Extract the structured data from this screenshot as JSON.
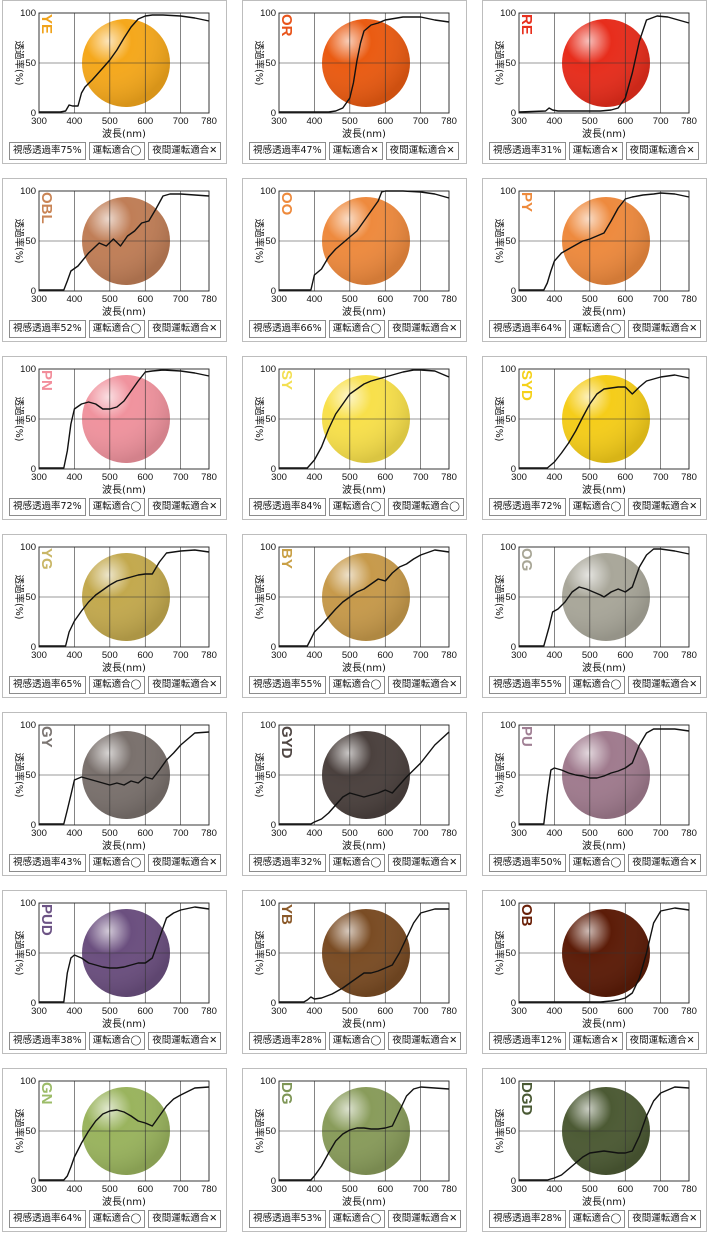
{
  "axis": {
    "xlabel": "波長(nm)",
    "ylabel": "透過率(%)",
    "x_ticks": [
      "300",
      "400",
      "500",
      "600",
      "700",
      "780"
    ],
    "y_ticks": [
      "0",
      "50",
      "100"
    ]
  },
  "chart_data": [
    {
      "type": "line",
      "code": "YE",
      "code_color": "#f0a31c",
      "lens_color": "#f5a81c",
      "xlim": [
        300,
        780
      ],
      "ylim": [
        0,
        100
      ],
      "x": [
        300,
        360,
        375,
        385,
        395,
        410,
        420,
        430,
        450,
        480,
        500,
        520,
        540,
        560,
        580,
        600,
        620,
        650,
        700,
        740,
        780
      ],
      "y": [
        1,
        1,
        2,
        8,
        7,
        7,
        20,
        26,
        33,
        45,
        53,
        63,
        75,
        86,
        94,
        97,
        98,
        98,
        97,
        95,
        92
      ],
      "info": [
        "視感透過率75%",
        "運転適合◯",
        "夜間運転適合✕"
      ]
    },
    {
      "type": "line",
      "code": "OR",
      "code_color": "#e8541b",
      "lens_color": "#ea5b12",
      "xlim": [
        300,
        780
      ],
      "ylim": [
        0,
        100
      ],
      "x": [
        300,
        400,
        440,
        460,
        480,
        500,
        510,
        520,
        530,
        540,
        560,
        580,
        600,
        650,
        700,
        740,
        780
      ],
      "y": [
        1,
        1,
        1,
        2,
        5,
        15,
        30,
        52,
        70,
        82,
        88,
        90,
        93,
        96,
        96,
        93,
        91
      ],
      "info": [
        "視感透過率47%",
        "運転適合✕",
        "夜間運転適合✕"
      ]
    },
    {
      "type": "line",
      "code": "RE",
      "code_color": "#e8301e",
      "lens_color": "#e72d1c",
      "xlim": [
        300,
        780
      ],
      "ylim": [
        0,
        100
      ],
      "x": [
        300,
        375,
        385,
        395,
        410,
        450,
        500,
        530,
        560,
        580,
        600,
        620,
        640,
        660,
        690,
        720,
        750,
        780
      ],
      "y": [
        1,
        2,
        5,
        3,
        2,
        2,
        2,
        2,
        3,
        5,
        15,
        40,
        72,
        93,
        97,
        96,
        93,
        90
      ],
      "info": [
        "視感透過率31%",
        "運転適合✕",
        "夜間運転適合✕"
      ]
    },
    {
      "type": "line",
      "code": "OBL",
      "code_color": "#c98455",
      "lens_color": "#c07e57",
      "xlim": [
        300,
        780
      ],
      "ylim": [
        0,
        100
      ],
      "x": [
        300,
        370,
        380,
        390,
        410,
        440,
        470,
        490,
        510,
        530,
        550,
        570,
        590,
        610,
        630,
        650,
        670,
        700,
        740,
        780
      ],
      "y": [
        1,
        1,
        10,
        20,
        25,
        38,
        48,
        45,
        52,
        45,
        55,
        60,
        68,
        70,
        82,
        95,
        97,
        97,
        96,
        95
      ],
      "info": [
        "視感透過率52%",
        "運転適合◯",
        "夜間運転適合✕"
      ]
    },
    {
      "type": "line",
      "code": "OO",
      "code_color": "#ee8a3c",
      "lens_color": "#ee8a3e",
      "xlim": [
        300,
        780
      ],
      "ylim": [
        0,
        100
      ],
      "x": [
        300,
        390,
        400,
        420,
        440,
        460,
        480,
        500,
        520,
        540,
        560,
        580,
        590,
        600,
        620,
        650,
        700,
        740,
        780
      ],
      "y": [
        1,
        1,
        16,
        22,
        34,
        42,
        48,
        54,
        60,
        70,
        80,
        90,
        99,
        100,
        100,
        100,
        99,
        97,
        93
      ],
      "info": [
        "視感透過率66%",
        "運転適合◯",
        "夜間運転適合✕"
      ]
    },
    {
      "type": "line",
      "code": "PY",
      "code_color": "#ee8a3c",
      "lens_color": "#ee8a3e",
      "xlim": [
        300,
        780
      ],
      "ylim": [
        0,
        100
      ],
      "x": [
        300,
        370,
        380,
        390,
        400,
        420,
        450,
        480,
        500,
        520,
        540,
        560,
        580,
        600,
        620,
        650,
        680,
        700,
        740,
        780
      ],
      "y": [
        1,
        1,
        8,
        20,
        30,
        38,
        44,
        50,
        52,
        55,
        58,
        70,
        83,
        92,
        94,
        96,
        97,
        98,
        97,
        94
      ],
      "info": [
        "視感透過率64%",
        "運転適合◯",
        "夜間運転適合✕"
      ]
    },
    {
      "type": "line",
      "code": "PN",
      "code_color": "#f28e9b",
      "lens_color": "#f0939e",
      "xlim": [
        300,
        780
      ],
      "ylim": [
        0,
        100
      ],
      "x": [
        300,
        370,
        380,
        390,
        400,
        420,
        440,
        460,
        480,
        500,
        520,
        540,
        560,
        580,
        600,
        620,
        650,
        700,
        740,
        780
      ],
      "y": [
        1,
        1,
        18,
        45,
        60,
        65,
        67,
        65,
        60,
        60,
        62,
        68,
        78,
        88,
        97,
        98,
        99,
        98,
        96,
        93
      ],
      "info": [
        "視感透過率72%",
        "運転適合◯",
        "夜間運転適合✕"
      ]
    },
    {
      "type": "line",
      "code": "SY",
      "code_color": "#f3df52",
      "lens_color": "#f8e04b",
      "xlim": [
        300,
        780
      ],
      "ylim": [
        0,
        100
      ],
      "x": [
        300,
        380,
        400,
        420,
        440,
        460,
        480,
        500,
        520,
        540,
        560,
        580,
        600,
        620,
        650,
        680,
        700,
        740,
        780
      ],
      "y": [
        1,
        1,
        9,
        22,
        40,
        55,
        65,
        75,
        80,
        85,
        88,
        90,
        92,
        94,
        97,
        99,
        99,
        98,
        92
      ],
      "info": [
        "視感透過率84%",
        "運転適合◯",
        "夜間運転適合◯"
      ]
    },
    {
      "type": "line",
      "code": "SYD",
      "code_color": "#f5d11a",
      "lens_color": "#f5cd1a",
      "xlim": [
        300,
        780
      ],
      "ylim": [
        0,
        100
      ],
      "x": [
        300,
        380,
        400,
        420,
        440,
        460,
        480,
        500,
        520,
        540,
        560,
        580,
        600,
        620,
        640,
        660,
        680,
        700,
        740,
        780
      ],
      "y": [
        1,
        1,
        7,
        16,
        26,
        38,
        52,
        65,
        75,
        80,
        81,
        82,
        82,
        75,
        82,
        88,
        90,
        92,
        94,
        91
      ],
      "info": [
        "視感透過率72%",
        "運転適合◯",
        "夜間運転適合✕"
      ]
    },
    {
      "type": "line",
      "code": "YG",
      "code_color": "#c9b666",
      "lens_color": "#c3a94e",
      "xlim": [
        300,
        780
      ],
      "ylim": [
        0,
        100
      ],
      "x": [
        300,
        375,
        385,
        400,
        420,
        440,
        460,
        480,
        500,
        520,
        540,
        560,
        580,
        600,
        620,
        640,
        660,
        700,
        740,
        780
      ],
      "y": [
        1,
        1,
        15,
        26,
        36,
        45,
        52,
        57,
        62,
        66,
        68,
        70,
        72,
        73,
        73,
        85,
        94,
        96,
        97,
        95
      ],
      "info": [
        "視感透過率65%",
        "運転適合◯",
        "夜間運転適合✕"
      ]
    },
    {
      "type": "line",
      "code": "BY",
      "code_color": "#c9a046",
      "lens_color": "#c79a4b",
      "xlim": [
        300,
        780
      ],
      "ylim": [
        0,
        100
      ],
      "x": [
        300,
        380,
        390,
        400,
        420,
        440,
        460,
        480,
        500,
        520,
        540,
        560,
        580,
        600,
        620,
        640,
        660,
        680,
        700,
        740,
        780
      ],
      "y": [
        1,
        1,
        8,
        15,
        22,
        30,
        38,
        45,
        50,
        55,
        58,
        63,
        68,
        66,
        74,
        80,
        83,
        88,
        92,
        97,
        95
      ],
      "info": [
        "視感透過率55%",
        "運転適合◯",
        "夜間運転適合✕"
      ]
    },
    {
      "type": "line",
      "code": "OG",
      "code_color": "#a8a696",
      "lens_color": "#a9a79a",
      "xlim": [
        300,
        780
      ],
      "ylim": [
        0,
        100
      ],
      "x": [
        300,
        370,
        385,
        395,
        410,
        430,
        450,
        470,
        490,
        510,
        530,
        540,
        560,
        580,
        600,
        620,
        640,
        660,
        680,
        700,
        740,
        780
      ],
      "y": [
        1,
        1,
        20,
        35,
        38,
        45,
        55,
        60,
        58,
        55,
        52,
        50,
        55,
        58,
        55,
        60,
        80,
        92,
        98,
        98,
        96,
        93
      ],
      "info": [
        "視感透過率55%",
        "運転適合◯",
        "夜間運転適合✕"
      ]
    },
    {
      "type": "line",
      "code": "GY",
      "code_color": "#7b7572",
      "lens_color": "#7a716d",
      "xlim": [
        300,
        780
      ],
      "ylim": [
        0,
        100
      ],
      "x": [
        300,
        370,
        380,
        390,
        400,
        420,
        440,
        460,
        480,
        500,
        520,
        540,
        560,
        580,
        600,
        620,
        640,
        660,
        680,
        700,
        740,
        780
      ],
      "y": [
        1,
        1,
        15,
        30,
        45,
        48,
        46,
        44,
        42,
        40,
        42,
        40,
        44,
        42,
        48,
        46,
        55,
        65,
        72,
        80,
        92,
        93
      ],
      "info": [
        "視感透過率43%",
        "運転適合◯",
        "夜間運転適合✕"
      ]
    },
    {
      "type": "line",
      "code": "GYD",
      "code_color": "#4f4643",
      "lens_color": "#4b413e",
      "xlim": [
        300,
        780
      ],
      "ylim": [
        0,
        100
      ],
      "x": [
        300,
        390,
        400,
        420,
        440,
        460,
        480,
        500,
        520,
        540,
        560,
        580,
        600,
        620,
        640,
        660,
        680,
        700,
        740,
        780
      ],
      "y": [
        1,
        1,
        3,
        6,
        12,
        20,
        28,
        32,
        30,
        28,
        30,
        32,
        35,
        32,
        40,
        48,
        55,
        62,
        80,
        93
      ],
      "info": [
        "視感透過率32%",
        "運転適合◯",
        "夜間運転適合✕"
      ]
    },
    {
      "type": "line",
      "code": "PU",
      "code_color": "#a07f94",
      "lens_color": "#a07b8e",
      "xlim": [
        300,
        780
      ],
      "ylim": [
        0,
        100
      ],
      "x": [
        300,
        370,
        380,
        390,
        400,
        420,
        440,
        460,
        480,
        500,
        520,
        540,
        560,
        580,
        600,
        620,
        640,
        660,
        680,
        700,
        740,
        780
      ],
      "y": [
        1,
        1,
        30,
        55,
        57,
        55,
        52,
        50,
        49,
        47,
        47,
        49,
        52,
        54,
        57,
        62,
        80,
        92,
        96,
        96,
        96,
        94
      ],
      "info": [
        "視感透過率50%",
        "運転適合◯",
        "夜間運転適合✕"
      ]
    },
    {
      "type": "line",
      "code": "PUD",
      "code_color": "#6c5385",
      "lens_color": "#6b4f7f",
      "xlim": [
        300,
        780
      ],
      "ylim": [
        0,
        100
      ],
      "x": [
        300,
        370,
        380,
        390,
        400,
        420,
        440,
        460,
        480,
        500,
        520,
        540,
        560,
        580,
        600,
        620,
        640,
        660,
        680,
        700,
        740,
        780
      ],
      "y": [
        1,
        1,
        30,
        45,
        48,
        45,
        40,
        38,
        36,
        35,
        35,
        36,
        38,
        40,
        40,
        45,
        65,
        85,
        90,
        93,
        96,
        94
      ],
      "info": [
        "視感透過率38%",
        "運転適合◯",
        "夜間運転適合✕"
      ]
    },
    {
      "type": "line",
      "code": "YB",
      "code_color": "#8b5a2a",
      "lens_color": "#7a4c24",
      "xlim": [
        300,
        780
      ],
      "ylim": [
        0,
        100
      ],
      "x": [
        300,
        370,
        380,
        390,
        400,
        420,
        450,
        480,
        500,
        520,
        540,
        560,
        580,
        600,
        620,
        640,
        660,
        680,
        700,
        740,
        780
      ],
      "y": [
        1,
        1,
        3,
        6,
        4,
        5,
        9,
        15,
        20,
        25,
        30,
        30,
        32,
        35,
        38,
        50,
        65,
        80,
        90,
        94,
        94
      ],
      "info": [
        "視感透過率28%",
        "運転適合◯",
        "夜間運転適合✕"
      ]
    },
    {
      "type": "line",
      "code": "OB",
      "code_color": "#6a2008",
      "lens_color": "#5c1c08",
      "xlim": [
        300,
        780
      ],
      "ylim": [
        0,
        100
      ],
      "x": [
        300,
        500,
        530,
        560,
        580,
        600,
        620,
        640,
        660,
        680,
        700,
        740,
        780
      ],
      "y": [
        1,
        1,
        1,
        2,
        3,
        5,
        10,
        25,
        50,
        80,
        92,
        95,
        93
      ],
      "info": [
        "視感透過率12%",
        "運転適合✕",
        "夜間運転適合✕"
      ]
    },
    {
      "type": "line",
      "code": "GN",
      "code_color": "#9cbc68",
      "lens_color": "#9ab45e",
      "xlim": [
        300,
        780
      ],
      "ylim": [
        0,
        100
      ],
      "x": [
        300,
        370,
        380,
        390,
        400,
        420,
        440,
        460,
        480,
        500,
        520,
        540,
        560,
        580,
        600,
        620,
        640,
        660,
        680,
        700,
        740,
        780
      ],
      "y": [
        1,
        1,
        5,
        14,
        24,
        38,
        50,
        60,
        67,
        70,
        71,
        69,
        65,
        60,
        58,
        55,
        65,
        75,
        82,
        86,
        93,
        94
      ],
      "info": [
        "視感透過率64%",
        "運転適合◯",
        "夜間運転適合✕"
      ]
    },
    {
      "type": "line",
      "code": "DG",
      "code_color": "#7e9656",
      "lens_color": "#899c5b",
      "xlim": [
        300,
        780
      ],
      "ylim": [
        0,
        100
      ],
      "x": [
        300,
        390,
        400,
        420,
        440,
        460,
        480,
        500,
        520,
        540,
        560,
        580,
        600,
        620,
        640,
        660,
        680,
        700,
        740,
        780
      ],
      "y": [
        1,
        1,
        5,
        15,
        28,
        40,
        47,
        51,
        53,
        53,
        52,
        52,
        53,
        55,
        70,
        85,
        92,
        94,
        93,
        92
      ],
      "info": [
        "視感透過率53%",
        "運転適合◯",
        "夜間運転適合✕"
      ]
    },
    {
      "type": "line",
      "code": "DGD",
      "code_color": "#4a5a34",
      "lens_color": "#4c5a34",
      "xlim": [
        300,
        780
      ],
      "ylim": [
        0,
        100
      ],
      "x": [
        300,
        380,
        400,
        420,
        440,
        460,
        480,
        500,
        520,
        540,
        560,
        580,
        600,
        620,
        640,
        660,
        680,
        700,
        740,
        780
      ],
      "y": [
        1,
        1,
        3,
        6,
        12,
        18,
        24,
        28,
        29,
        30,
        29,
        28,
        28,
        30,
        45,
        65,
        80,
        88,
        94,
        93
      ],
      "info": [
        "視感透過率28%",
        "運転適合◯",
        "夜間運転適合✕"
      ]
    }
  ]
}
